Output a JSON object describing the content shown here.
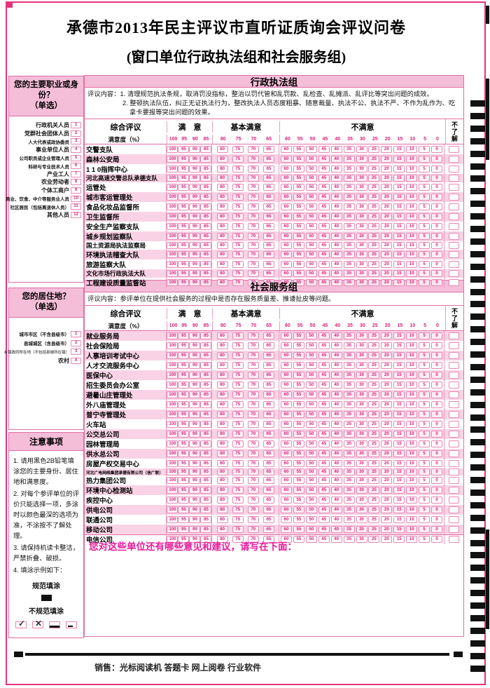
{
  "title": {
    "line1": "承德市2013年民主评议市直听证质询会评议问卷",
    "line2": "(窗口单位行政执法组和社会服务组)"
  },
  "sidebar": {
    "occupation": {
      "title": "您的主要职业或身份？",
      "subtitle": "（单选）",
      "items": [
        {
          "label": "行政机关人员",
          "num": "1"
        },
        {
          "label": "党群社会团体人员",
          "num": "2"
        },
        {
          "label": "人大代表或政协委员",
          "num": "3"
        },
        {
          "label": "事业单位人员",
          "num": "4"
        },
        {
          "label": "公司职员或企业管理人员",
          "num": "5"
        },
        {
          "label": "科研与专业技术人员",
          "num": "6"
        },
        {
          "label": "产业工人",
          "num": "7"
        },
        {
          "label": "农业劳动者",
          "num": "8"
        },
        {
          "label": "个体工商户",
          "num": "9"
        },
        {
          "label": "商业、饮食、中介等服务业人员",
          "num": "10"
        },
        {
          "label": "社区居民（包括离退休人员）",
          "num": "11"
        },
        {
          "label": "其他人员",
          "num": "12"
        }
      ]
    },
    "residence": {
      "title": "您的居住地？",
      "subtitle": "（单选）",
      "items": [
        {
          "label": "城市市区（不含县级市）",
          "num": "1"
        },
        {
          "label": "县城城区（含县级市）",
          "num": "2"
        },
        {
          "label": "乡镇政府所在地（不包括县城所在镇）",
          "num": "3"
        },
        {
          "label": "农村",
          "num": "4"
        }
      ]
    },
    "notes": {
      "title": "注意事项",
      "paragraphs": [
        "1. 请用黑色2B铅笔填涂您的主要身份、居住地和满意度。",
        "2. 对每个参评单位的评价只能选择一项，多涂时以颜色最深的选项为准，不涂按不了解处理。",
        "3. 请保持机读卡整洁，严禁折叠、破损。",
        "4. 填涂示例如下："
      ],
      "good_label": "规范填涂",
      "bad_label": "不规范填涂",
      "bad_marks": [
        "check-mark",
        "cross-mark",
        "thick-bottom-line",
        "short-dash"
      ]
    }
  },
  "table_header": {
    "col_overall": "综合评议",
    "col_satisfied": "满　意",
    "col_basic": "基本满意",
    "col_unsatisfied": "不满意",
    "col_unknown": "不了解",
    "row_label": "满意度（%）",
    "satisfied_values": [
      "100",
      "95",
      "90",
      "85"
    ],
    "basic_values": [
      "80",
      "75",
      "70",
      "65"
    ],
    "unsatisfied_values": [
      "60",
      "55",
      "50",
      "45",
      "40",
      "35",
      "30",
      "25",
      "20",
      "15",
      "10",
      "5",
      "0"
    ]
  },
  "tables": [
    {
      "group_title": "行政执法组",
      "review_lines": [
        "评议内容：1. 清理规范执法条规，取消罚没指标，整治以罚代管和乱罚款、乱检查、乱摊派、乱评比等突出问题的成效。",
        "2. 整顿执法队伍，纠正无证执法行为，整改执法人员态度粗暴、随意裁量、执法不公、执法不严、不作为乱作为、吃",
        "拿卡要报等突出问题的效果。"
      ],
      "first_row_pink": false,
      "units": [
        "交警支队",
        "森林公安局",
        "1 1 0指挥中心",
        "河北高速交警总队承德支队",
        "运管处",
        "城市客运管理处",
        "食品化妆品监督所",
        "卫生监督所",
        "安全生产监察支队",
        "城乡规划监察队",
        "国土资源局执法监察局",
        "环境执法稽查大队",
        "旅游监察大队",
        "文化市场行政执法大队",
        "工程建设质量监督站"
      ]
    },
    {
      "group_title": "社会服务组",
      "review_lines": [
        "评议内容：参评单位在提供社会服务的过程中是否存在服务质量差、推诿扯皮等问题。"
      ],
      "first_row_pink": true,
      "units": [
        "就业服务局",
        "社会保险局",
        "人事培训考试中心",
        "人才交流服务中心",
        "医保中心",
        "招生委员会办公室",
        "避暑山庄管理处",
        "外八庙管理处",
        "普宁寺管理处",
        "火车站",
        "公交总公司",
        "园林管理局",
        "供水总公司",
        "房屋产权交易中心",
        "河北广电网络集团承德有限公司（信广联）",
        "热力集团公司",
        "环境中心检测站",
        "疾控中心",
        "供电公司",
        "联通公司",
        "移动公司",
        "电信公司"
      ]
    }
  ],
  "suggestion_text": "您对这些单位还有哪些意见和建议，请写在下面：",
  "footer_text": "销售：光标阅读机 答题卡 网上阅卷 行业软件",
  "omr": {
    "timing_mark_count": 46
  },
  "colors": {
    "accent": "#d6217c",
    "frame": "#e6337e",
    "band_pink": "#f5bed8",
    "row_pink": "#f9d3e5"
  }
}
